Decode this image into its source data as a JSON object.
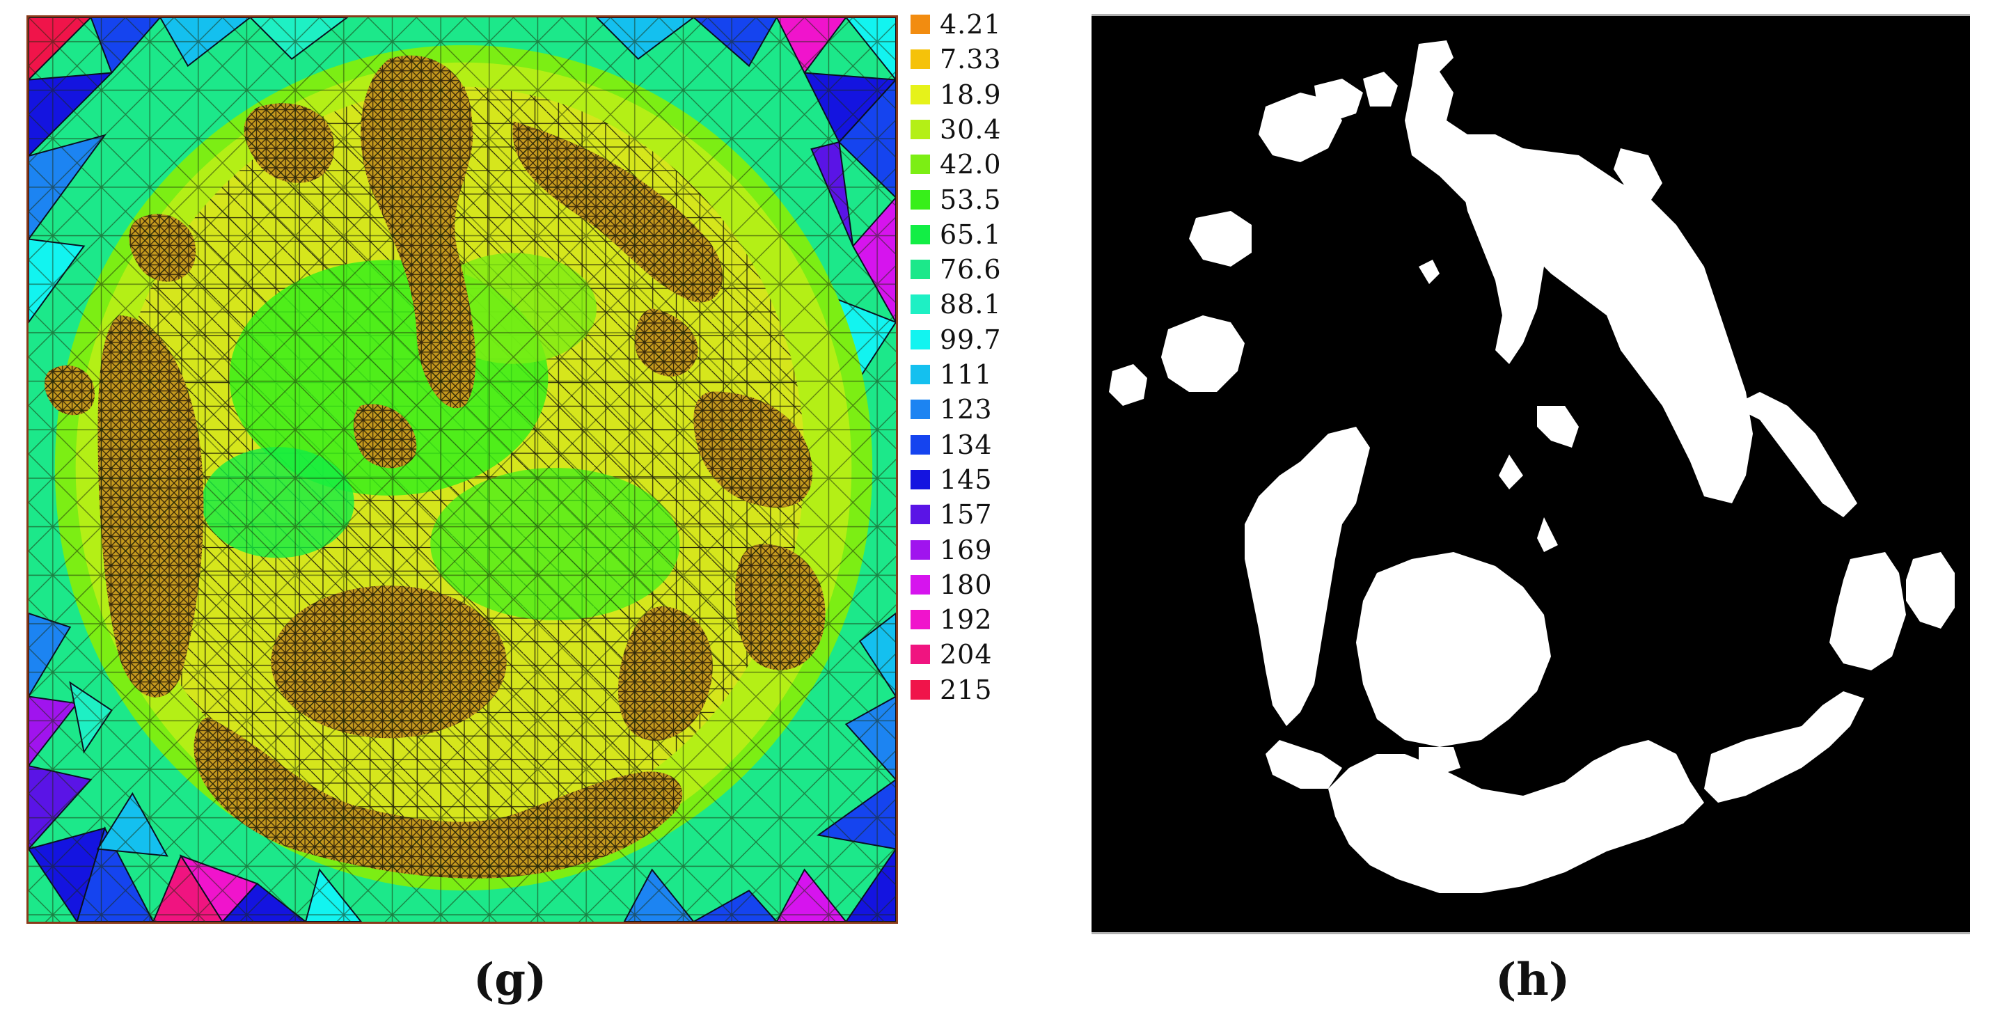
{
  "panels": {
    "g": {
      "caption": "(g)",
      "legend": [
        {
          "label": "4.21",
          "color": "#f28c10"
        },
        {
          "label": "7.33",
          "color": "#f5c20a"
        },
        {
          "label": "18.9",
          "color": "#e6f21a"
        },
        {
          "label": "30.4",
          "color": "#b4ef16"
        },
        {
          "label": "42.0",
          "color": "#7cee14"
        },
        {
          "label": "53.5",
          "color": "#37ef1a"
        },
        {
          "label": "65.1",
          "color": "#12ee45"
        },
        {
          "label": "76.6",
          "color": "#1ce88a"
        },
        {
          "label": "88.1",
          "color": "#1ef0c4"
        },
        {
          "label": "99.7",
          "color": "#12f4f0"
        },
        {
          "label": "111",
          "color": "#14c0ef"
        },
        {
          "label": "123",
          "color": "#1c84f2"
        },
        {
          "label": "134",
          "color": "#1544ef"
        },
        {
          "label": "145",
          "color": "#1414e0"
        },
        {
          "label": "157",
          "color": "#5a14e6"
        },
        {
          "label": "169",
          "color": "#a014ee"
        },
        {
          "label": "180",
          "color": "#d614ee"
        },
        {
          "label": "192",
          "color": "#f014cc"
        },
        {
          "label": "204",
          "color": "#f01480"
        },
        {
          "label": "215",
          "color": "#f0144a"
        }
      ]
    },
    "h": {
      "caption": "(h)"
    }
  }
}
